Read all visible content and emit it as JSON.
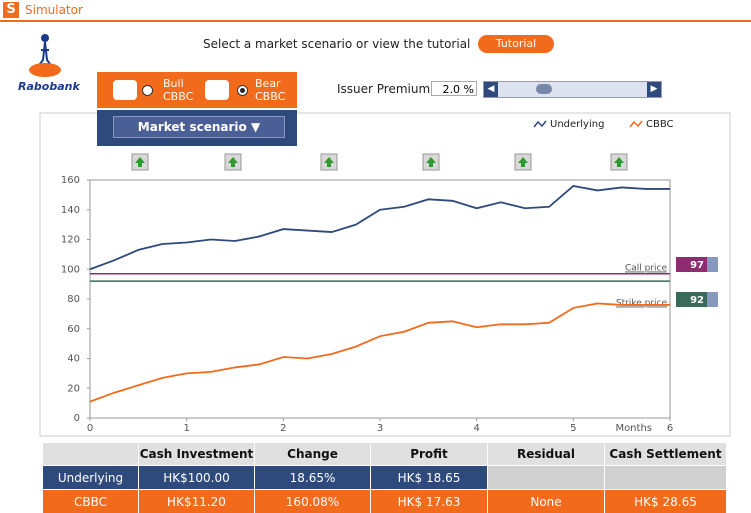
{
  "app": {
    "title": "Simulator",
    "logo": "Rabobank",
    "instruction": "Select a market scenario or view the tutorial",
    "tutorial": "Tutorial",
    "bull": [
      "Bull",
      "CBBC"
    ],
    "bear": [
      "Bear",
      "CBBC"
    ],
    "market_scenario": "Market scenario",
    "issuer_premium": {
      "label": "Issuer Premium",
      "value": "2.0",
      "unit": "%"
    }
  },
  "chart_data": {
    "type": "line",
    "x": [
      0,
      0.25,
      0.5,
      0.75,
      1,
      1.25,
      1.5,
      1.75,
      2,
      2.25,
      2.5,
      2.75,
      3,
      3.25,
      3.5,
      3.75,
      4,
      4.25,
      4.5,
      4.75,
      5,
      5.25,
      5.5,
      5.75,
      6
    ],
    "series": [
      {
        "name": "Underlying",
        "color": "#2e4a7d",
        "values": [
          100,
          106,
          113,
          117,
          118,
          120,
          119,
          122,
          127,
          126,
          125,
          130,
          140,
          142,
          147,
          146,
          141,
          145,
          141,
          142,
          156,
          153,
          155,
          154,
          154
        ]
      },
      {
        "name": "CBBC",
        "color": "#f26a1b",
        "values": [
          11,
          17,
          22,
          27,
          30,
          31,
          34,
          36,
          41,
          40,
          43,
          48,
          55,
          58,
          64,
          65,
          61,
          63,
          63,
          64,
          74,
          77,
          76,
          76,
          76
        ]
      }
    ],
    "xlim": [
      0,
      6
    ],
    "ylim": [
      0,
      160
    ],
    "xticks": [
      0,
      1,
      2,
      3,
      4,
      5,
      6
    ],
    "yticks": [
      0,
      20,
      40,
      60,
      80,
      100,
      120,
      140,
      160
    ],
    "x_label": "Months",
    "grid": false,
    "call_price": {
      "label": "Call price",
      "value": 97,
      "color": "#8b2d6e"
    },
    "strike_price": {
      "label": "Strike price",
      "value": 92,
      "color": "#3a6a5a"
    }
  },
  "table": {
    "header": [
      "Cash Investment",
      "Change",
      "Profit",
      "Residual",
      "Cash Settlement"
    ],
    "rows": [
      [
        "Underlying",
        "HK$100.00",
        "18.65%",
        "HK$ 18.65",
        "",
        ""
      ],
      [
        "CBBC",
        "HK$11.20",
        "160.08%",
        "HK$ 17.63",
        "None",
        "HK$ 28.65"
      ]
    ]
  }
}
